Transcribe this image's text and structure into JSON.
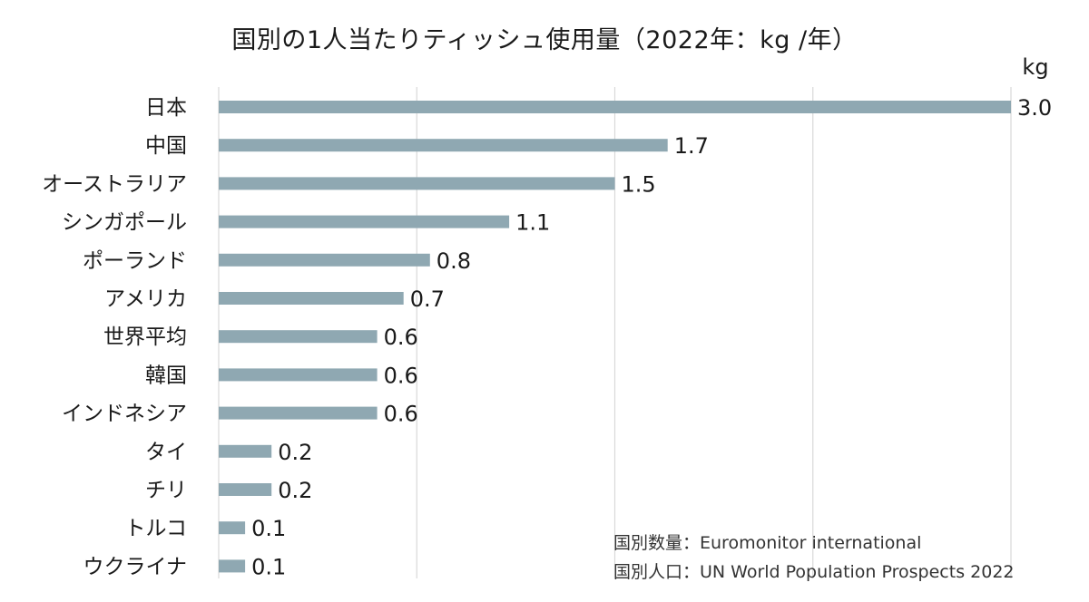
{
  "chart_data": {
    "type": "bar",
    "orientation": "horizontal",
    "title": "国別の1人当たりティッシュ使用量（2022年：kg /年）",
    "unit": "kg",
    "categories": [
      "日本",
      "中国",
      "オーストラリア",
      "シンガポール",
      "ポーランド",
      "アメリカ",
      "世界平均",
      "韓国",
      "インドネシア",
      "タイ",
      "チリ",
      "トルコ",
      "ウクライナ"
    ],
    "values": [
      3.0,
      1.7,
      1.5,
      1.1,
      0.8,
      0.7,
      0.6,
      0.6,
      0.6,
      0.2,
      0.2,
      0.1,
      0.1
    ],
    "value_labels": [
      "3.0",
      "1.7",
      "1.5",
      "1.1",
      "0.8",
      "0.7",
      "0.6",
      "0.6",
      "0.6",
      "0.2",
      "0.2",
      "0.1",
      "0.1"
    ],
    "xlim": [
      0,
      3.0
    ],
    "gridlines": [
      0,
      0.75,
      1.5,
      2.25,
      3.0
    ],
    "grid": true,
    "bar_color": "#8fa8b2",
    "grid_color": "#d9d9d9"
  },
  "sources": [
    "国別数量：Euromonitor international",
    "国別人口：UN World Population Prospects 2022"
  ]
}
